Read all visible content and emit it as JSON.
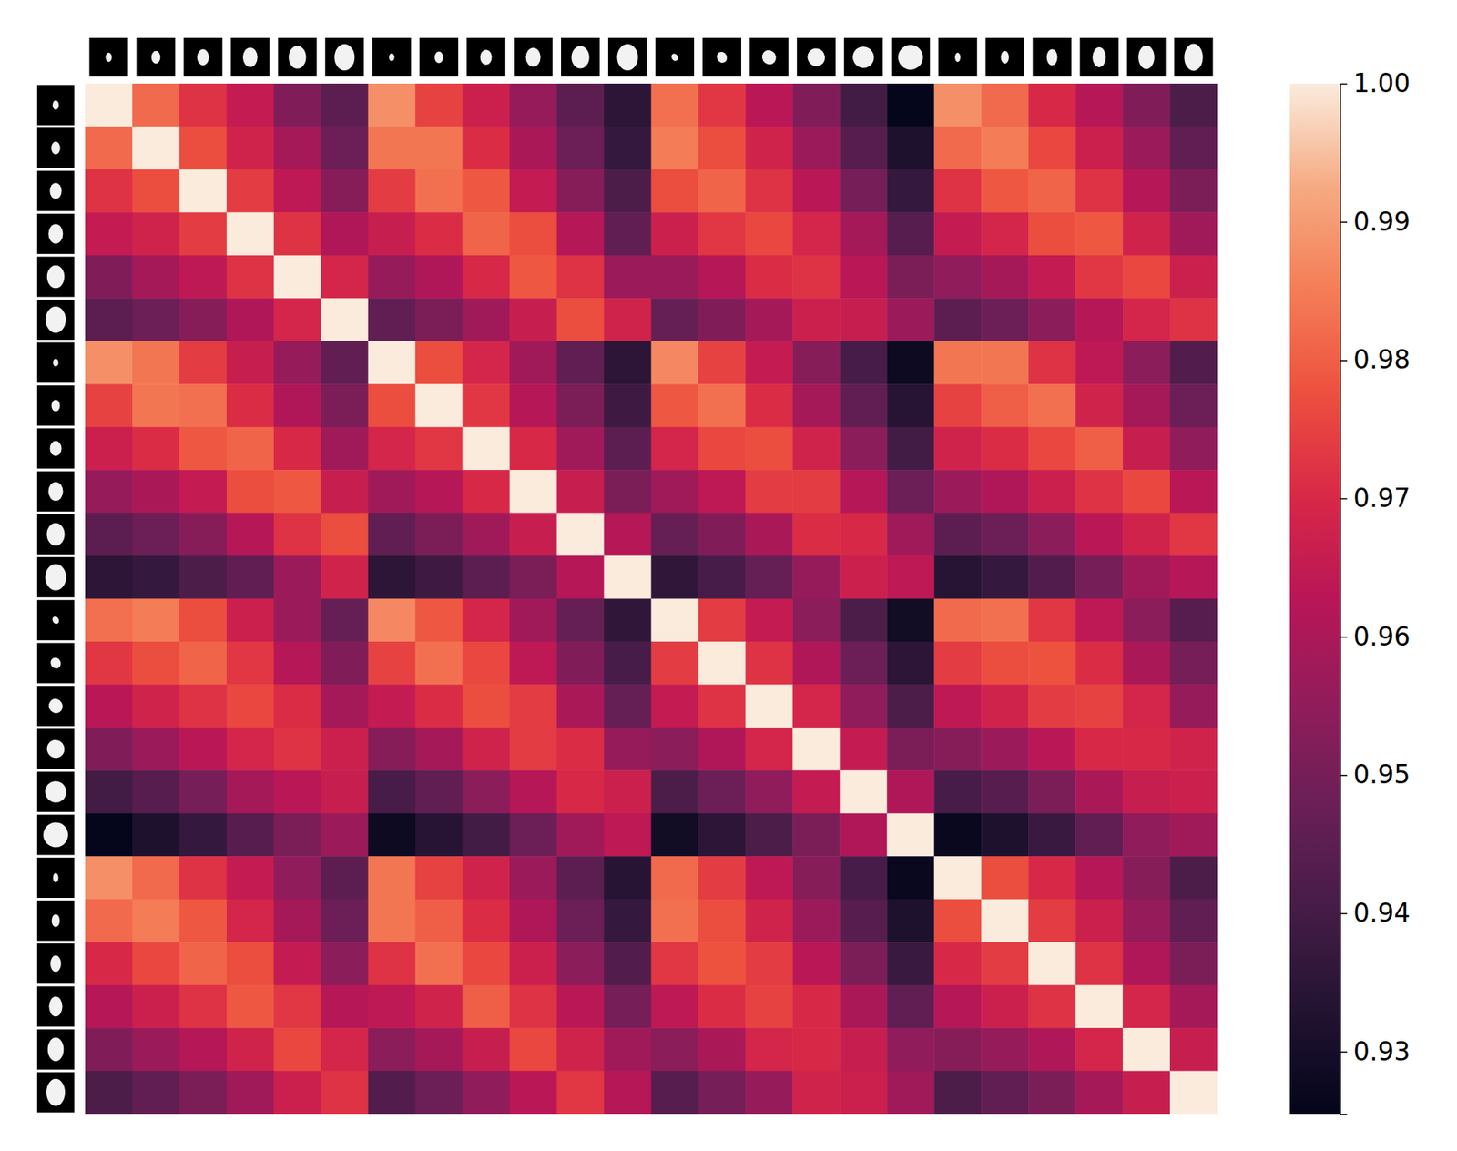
{
  "chart_data": {
    "type": "heatmap",
    "cells": [
      [
        1.0,
        0.982,
        0.972,
        0.965,
        0.952,
        0.945,
        0.988,
        0.975,
        0.967,
        0.956,
        0.945,
        0.935,
        0.983,
        0.973,
        0.963,
        0.952,
        0.94,
        0.926,
        0.988,
        0.982,
        0.97,
        0.962,
        0.952,
        0.942
      ],
      [
        0.982,
        1.0,
        0.977,
        0.968,
        0.959,
        0.948,
        0.984,
        0.984,
        0.971,
        0.96,
        0.948,
        0.937,
        0.985,
        0.977,
        0.968,
        0.957,
        0.944,
        0.932,
        0.982,
        0.985,
        0.976,
        0.967,
        0.957,
        0.946
      ],
      [
        0.972,
        0.977,
        1.0,
        0.974,
        0.964,
        0.953,
        0.974,
        0.983,
        0.979,
        0.965,
        0.953,
        0.942,
        0.977,
        0.981,
        0.972,
        0.963,
        0.95,
        0.937,
        0.972,
        0.979,
        0.981,
        0.972,
        0.962,
        0.951
      ],
      [
        0.965,
        0.968,
        0.974,
        1.0,
        0.972,
        0.961,
        0.966,
        0.971,
        0.981,
        0.977,
        0.962,
        0.946,
        0.967,
        0.973,
        0.976,
        0.969,
        0.959,
        0.944,
        0.965,
        0.969,
        0.977,
        0.979,
        0.968,
        0.958
      ],
      [
        0.952,
        0.959,
        0.964,
        0.972,
        1.0,
        0.969,
        0.956,
        0.961,
        0.97,
        0.979,
        0.972,
        0.957,
        0.957,
        0.962,
        0.971,
        0.972,
        0.963,
        0.951,
        0.955,
        0.959,
        0.965,
        0.973,
        0.976,
        0.967
      ],
      [
        0.945,
        0.948,
        0.953,
        0.961,
        0.969,
        1.0,
        0.946,
        0.951,
        0.958,
        0.966,
        0.977,
        0.968,
        0.947,
        0.952,
        0.959,
        0.967,
        0.966,
        0.957,
        0.945,
        0.948,
        0.954,
        0.962,
        0.969,
        0.972
      ],
      [
        0.988,
        0.984,
        0.974,
        0.966,
        0.956,
        0.946,
        1.0,
        0.977,
        0.969,
        0.958,
        0.946,
        0.935,
        0.987,
        0.975,
        0.965,
        0.953,
        0.941,
        0.928,
        0.984,
        0.984,
        0.972,
        0.964,
        0.954,
        0.943
      ],
      [
        0.975,
        0.984,
        0.983,
        0.971,
        0.961,
        0.951,
        0.977,
        1.0,
        0.973,
        0.962,
        0.951,
        0.939,
        0.979,
        0.983,
        0.971,
        0.959,
        0.946,
        0.934,
        0.975,
        0.98,
        0.983,
        0.968,
        0.959,
        0.948
      ],
      [
        0.967,
        0.971,
        0.979,
        0.981,
        0.97,
        0.958,
        0.969,
        0.973,
        1.0,
        0.97,
        0.958,
        0.945,
        0.969,
        0.976,
        0.977,
        0.968,
        0.954,
        0.94,
        0.968,
        0.971,
        0.976,
        0.98,
        0.966,
        0.955
      ],
      [
        0.956,
        0.96,
        0.965,
        0.977,
        0.979,
        0.966,
        0.958,
        0.962,
        0.97,
        1.0,
        0.966,
        0.951,
        0.958,
        0.964,
        0.974,
        0.974,
        0.962,
        0.948,
        0.957,
        0.961,
        0.967,
        0.972,
        0.976,
        0.963
      ],
      [
        0.945,
        0.948,
        0.953,
        0.962,
        0.972,
        0.977,
        0.946,
        0.951,
        0.958,
        0.966,
        1.0,
        0.962,
        0.947,
        0.952,
        0.96,
        0.971,
        0.97,
        0.958,
        0.945,
        0.948,
        0.954,
        0.963,
        0.968,
        0.973
      ],
      [
        0.935,
        0.937,
        0.942,
        0.946,
        0.957,
        0.968,
        0.935,
        0.939,
        0.945,
        0.951,
        0.962,
        1.0,
        0.936,
        0.941,
        0.947,
        0.956,
        0.967,
        0.964,
        0.934,
        0.937,
        0.943,
        0.95,
        0.958,
        0.962
      ],
      [
        0.983,
        0.985,
        0.977,
        0.967,
        0.957,
        0.947,
        0.987,
        0.979,
        0.969,
        0.958,
        0.947,
        0.936,
        1.0,
        0.974,
        0.965,
        0.954,
        0.942,
        0.929,
        0.982,
        0.983,
        0.973,
        0.964,
        0.954,
        0.944
      ],
      [
        0.973,
        0.977,
        0.981,
        0.973,
        0.962,
        0.952,
        0.975,
        0.983,
        0.976,
        0.964,
        0.952,
        0.941,
        0.974,
        1.0,
        0.972,
        0.961,
        0.948,
        0.935,
        0.974,
        0.977,
        0.978,
        0.971,
        0.96,
        0.95
      ],
      [
        0.963,
        0.968,
        0.972,
        0.976,
        0.971,
        0.959,
        0.965,
        0.971,
        0.977,
        0.974,
        0.96,
        0.947,
        0.965,
        0.972,
        1.0,
        0.969,
        0.955,
        0.942,
        0.964,
        0.968,
        0.974,
        0.975,
        0.969,
        0.956
      ],
      [
        0.952,
        0.957,
        0.963,
        0.969,
        0.972,
        0.967,
        0.953,
        0.959,
        0.968,
        0.974,
        0.971,
        0.956,
        0.954,
        0.961,
        0.969,
        1.0,
        0.965,
        0.951,
        0.953,
        0.957,
        0.963,
        0.97,
        0.97,
        0.968
      ],
      [
        0.94,
        0.944,
        0.95,
        0.959,
        0.963,
        0.966,
        0.941,
        0.946,
        0.954,
        0.962,
        0.97,
        0.967,
        0.942,
        0.948,
        0.955,
        0.965,
        1.0,
        0.961,
        0.941,
        0.944,
        0.951,
        0.96,
        0.966,
        0.967
      ],
      [
        0.926,
        0.932,
        0.937,
        0.944,
        0.951,
        0.957,
        0.928,
        0.934,
        0.94,
        0.948,
        0.958,
        0.964,
        0.929,
        0.935,
        0.942,
        0.951,
        0.961,
        1.0,
        0.927,
        0.932,
        0.938,
        0.946,
        0.955,
        0.958
      ],
      [
        0.988,
        0.982,
        0.972,
        0.965,
        0.955,
        0.945,
        0.984,
        0.975,
        0.968,
        0.957,
        0.945,
        0.934,
        0.982,
        0.974,
        0.964,
        0.953,
        0.941,
        0.927,
        1.0,
        0.977,
        0.97,
        0.962,
        0.953,
        0.942
      ],
      [
        0.982,
        0.985,
        0.979,
        0.969,
        0.959,
        0.948,
        0.984,
        0.98,
        0.971,
        0.961,
        0.948,
        0.937,
        0.983,
        0.977,
        0.968,
        0.957,
        0.944,
        0.932,
        0.977,
        1.0,
        0.974,
        0.967,
        0.956,
        0.946
      ],
      [
        0.97,
        0.976,
        0.981,
        0.977,
        0.965,
        0.954,
        0.972,
        0.983,
        0.976,
        0.967,
        0.954,
        0.943,
        0.973,
        0.978,
        0.974,
        0.963,
        0.951,
        0.938,
        0.97,
        0.974,
        1.0,
        0.972,
        0.961,
        0.951
      ],
      [
        0.962,
        0.967,
        0.972,
        0.979,
        0.973,
        0.962,
        0.964,
        0.968,
        0.98,
        0.972,
        0.963,
        0.95,
        0.964,
        0.971,
        0.975,
        0.97,
        0.96,
        0.946,
        0.962,
        0.967,
        0.972,
        1.0,
        0.969,
        0.959
      ],
      [
        0.952,
        0.957,
        0.962,
        0.968,
        0.976,
        0.969,
        0.954,
        0.959,
        0.966,
        0.976,
        0.968,
        0.958,
        0.954,
        0.96,
        0.969,
        0.97,
        0.966,
        0.955,
        0.953,
        0.956,
        0.961,
        0.969,
        1.0,
        0.966
      ],
      [
        0.942,
        0.946,
        0.951,
        0.958,
        0.967,
        0.972,
        0.943,
        0.948,
        0.955,
        0.963,
        0.973,
        0.962,
        0.944,
        0.95,
        0.956,
        0.968,
        0.967,
        0.958,
        0.942,
        0.946,
        0.951,
        0.959,
        0.966,
        1.0
      ]
    ],
    "colorbar": {
      "range": [
        0.9255,
        1.0
      ],
      "ticks": [
        0.93,
        0.94,
        0.95,
        0.96,
        0.97,
        0.98,
        0.99,
        {
          "value": 1.0,
          "label": "1.00"
        }
      ]
    }
  }
}
